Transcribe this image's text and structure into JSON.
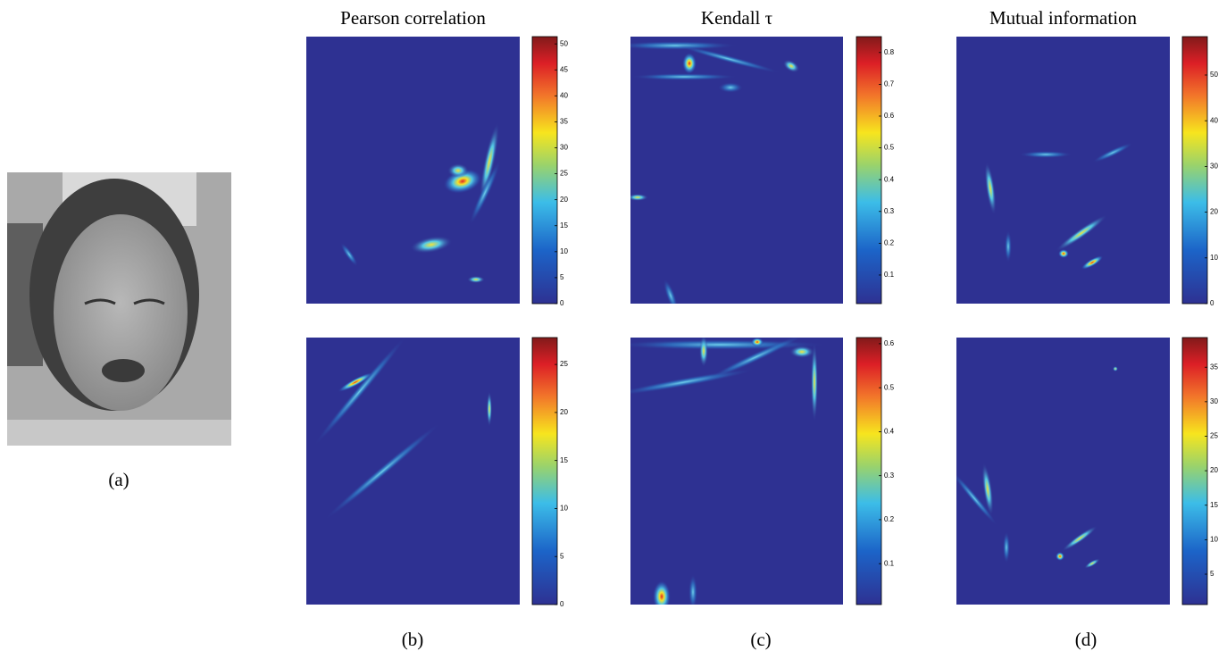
{
  "figure": {
    "panel_a": {
      "label": "(a)"
    },
    "columns": [
      {
        "title": "Pearson correlation",
        "label": "(b)",
        "colorbars": [
          {
            "range": [
              0,
              51.4
            ],
            "ticks": [
              0,
              5,
              10,
              15,
              20,
              25,
              30,
              35,
              40,
              45,
              50
            ]
          },
          {
            "range": [
              0,
              27.8
            ],
            "ticks": [
              0,
              5,
              10,
              15,
              20,
              25
            ]
          }
        ]
      },
      {
        "title": "Kendall τ",
        "label": "(c)",
        "colorbars": [
          {
            "range": [
              0.01,
              0.85
            ],
            "ticks": [
              0.1,
              0.2,
              0.3,
              0.4,
              0.5,
              0.6,
              0.7,
              0.8
            ]
          },
          {
            "range": [
              0.007,
              0.614
            ],
            "ticks": [
              0.1,
              0.2,
              0.3,
              0.4,
              0.5,
              0.6
            ]
          }
        ]
      },
      {
        "title": "Mutual information",
        "label": "(d)",
        "colorbars": [
          {
            "range": [
              0,
              58.4
            ],
            "ticks": [
              0,
              10,
              20,
              30,
              40,
              50
            ]
          },
          {
            "range": [
              0.6,
              39.3
            ],
            "ticks": [
              5,
              10,
              15,
              20,
              25,
              30,
              35
            ]
          }
        ]
      }
    ]
  }
}
